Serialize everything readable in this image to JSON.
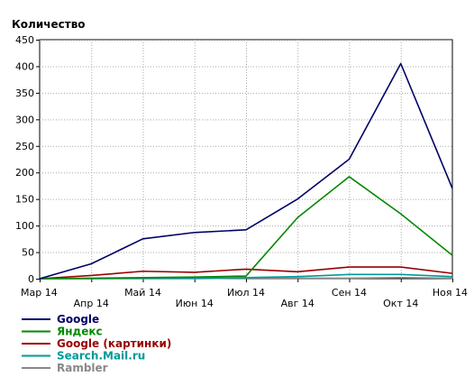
{
  "chart_data": {
    "type": "line",
    "title": "",
    "ylabel": "Количество",
    "xlabel": "",
    "ylim": [
      0,
      450
    ],
    "yticks": [
      0,
      50,
      100,
      150,
      200,
      250,
      300,
      350,
      400,
      450
    ],
    "categories": [
      "Мар 14",
      "Апр 14",
      "Май 14",
      "Июн 14",
      "Июл 14",
      "Авг 14",
      "Сен 14",
      "Окт 14",
      "Ноя 14"
    ],
    "grid": true,
    "legend_position": "bottom-left",
    "series": [
      {
        "name": "Google",
        "color": "#000066",
        "values": [
          0,
          28,
          75,
          87,
          92,
          150,
          225,
          405,
          170
        ]
      },
      {
        "name": "Яндекс",
        "color": "#008800",
        "values": [
          0,
          1,
          2,
          3,
          5,
          115,
          192,
          122,
          44
        ]
      },
      {
        "name": "Google (картинки)",
        "color": "#990000",
        "values": [
          0,
          6,
          14,
          12,
          18,
          13,
          22,
          22,
          10
        ]
      },
      {
        "name": "Search.Mail.ru",
        "color": "#009999",
        "values": [
          0,
          0,
          1,
          1,
          2,
          4,
          8,
          8,
          4
        ]
      },
      {
        "name": "Rambler",
        "color": "#888888",
        "values": [
          0,
          0,
          0,
          0,
          1,
          1,
          1,
          2,
          1
        ]
      }
    ]
  }
}
